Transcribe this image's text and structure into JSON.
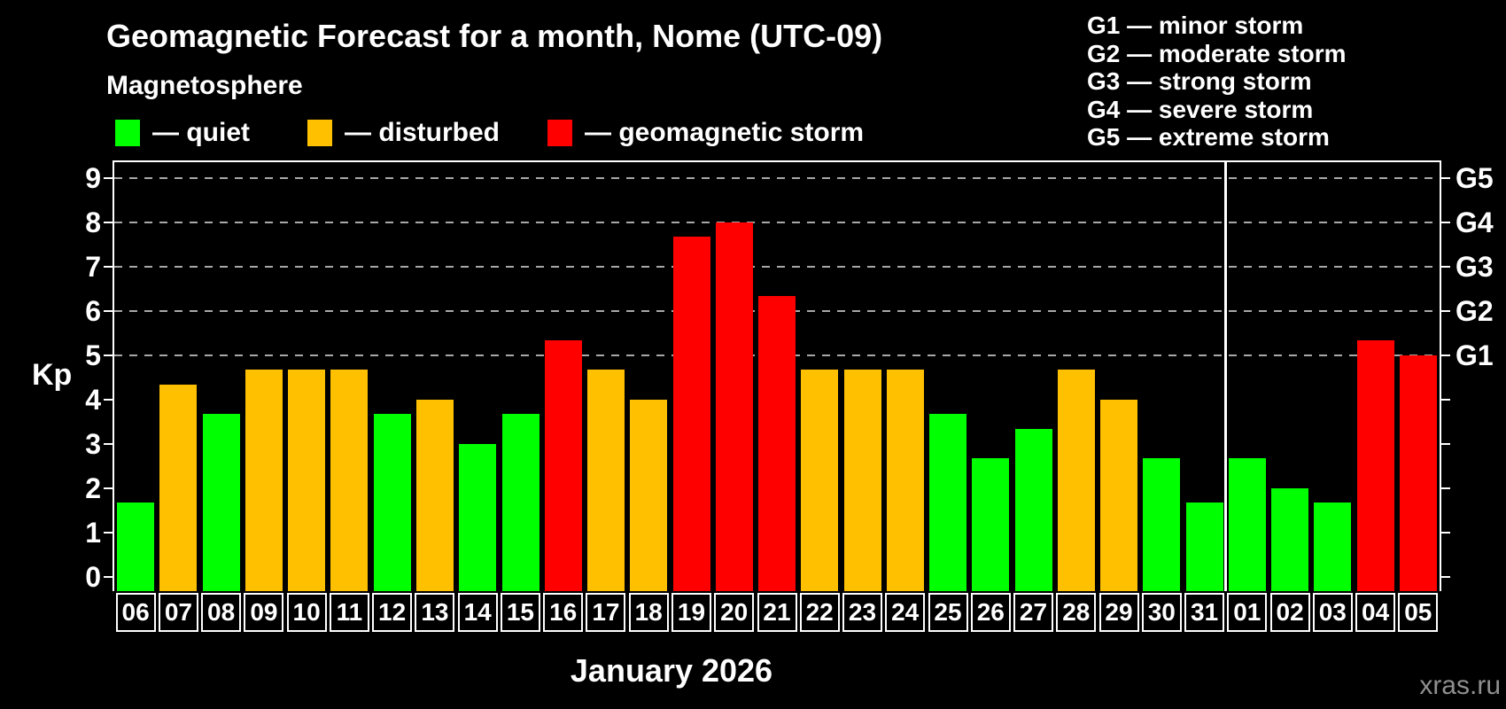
{
  "title": "Geomagnetic Forecast for a month, Nome (UTC-09)",
  "subtitle": "Magnetosphere",
  "legend": {
    "items": [
      {
        "key": "quiet",
        "label": "— quiet"
      },
      {
        "key": "disturbed",
        "label": "— disturbed"
      },
      {
        "key": "storm",
        "label": "— geomagnetic storm"
      }
    ]
  },
  "storm_legend": [
    "G1 — minor storm",
    "G2 — moderate storm",
    "G3 — strong storm",
    "G4 — severe storm",
    "G5 — extreme storm"
  ],
  "watermark": "xras.ru",
  "colors": {
    "quiet": "#00ff00",
    "disturbed": "#ffc000",
    "storm": "#ff0000",
    "axis": "#ffffff",
    "grid": "#a8a8a8",
    "background": "#000000",
    "watermark": "#8f8f8f"
  },
  "chart_data": {
    "type": "bar",
    "title": "Geomagnetic Forecast for a month, Nome (UTC-09)",
    "xlabel": "January 2026",
    "ylabel": "Kp",
    "ylim": [
      0,
      9
    ],
    "yticks": [
      0,
      1,
      2,
      3,
      4,
      5,
      6,
      7,
      8,
      9
    ],
    "gridline_values": [
      5,
      6,
      7,
      8,
      9
    ],
    "grid_style": "dashed",
    "legend_position": "top-left",
    "right_axis": [
      {
        "value": 5,
        "label": "G1"
      },
      {
        "value": 6,
        "label": "G2"
      },
      {
        "value": 7,
        "label": "G3"
      },
      {
        "value": 8,
        "label": "G4"
      },
      {
        "value": 9,
        "label": "G5"
      }
    ],
    "categories": [
      "06",
      "07",
      "08",
      "09",
      "10",
      "11",
      "12",
      "13",
      "14",
      "15",
      "16",
      "17",
      "18",
      "19",
      "20",
      "21",
      "22",
      "23",
      "24",
      "25",
      "26",
      "27",
      "28",
      "29",
      "30",
      "31",
      "01",
      "02",
      "03",
      "04",
      "05"
    ],
    "series": [
      {
        "name": "Kp forecast",
        "values": [
          1.67,
          4.33,
          3.67,
          4.67,
          4.67,
          4.67,
          3.67,
          4.0,
          3.0,
          3.67,
          5.33,
          4.67,
          4.0,
          7.67,
          8.0,
          6.33,
          4.67,
          4.67,
          4.67,
          3.67,
          2.67,
          3.33,
          4.67,
          4.0,
          2.67,
          1.67,
          2.67,
          2.0,
          1.67,
          5.33,
          5.0
        ]
      }
    ],
    "statuses": [
      "quiet",
      "disturbed",
      "quiet",
      "disturbed",
      "disturbed",
      "disturbed",
      "quiet",
      "disturbed",
      "quiet",
      "quiet",
      "storm",
      "disturbed",
      "disturbed",
      "storm",
      "storm",
      "storm",
      "disturbed",
      "disturbed",
      "disturbed",
      "quiet",
      "quiet",
      "quiet",
      "disturbed",
      "disturbed",
      "quiet",
      "quiet",
      "quiet",
      "quiet",
      "quiet",
      "storm",
      "storm"
    ],
    "month_separator_after_index": 25
  }
}
